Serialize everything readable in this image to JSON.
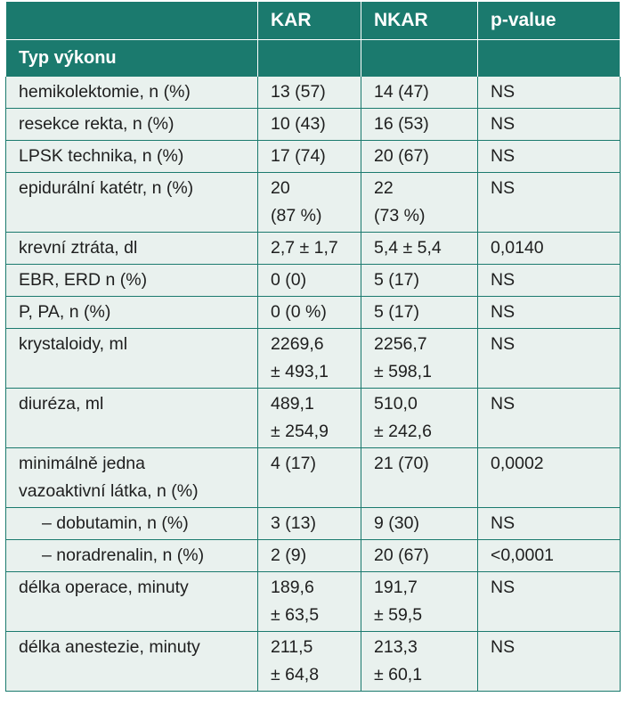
{
  "headers": [
    "",
    "KAR",
    "NKAR",
    "p-value"
  ],
  "section": "Typ výkonu",
  "rows": [
    {
      "label": [
        "hemikolektomie, n (%)"
      ],
      "kar": [
        "13 (57)"
      ],
      "nkar": [
        "14 (47)"
      ],
      "p": "NS",
      "sub": false
    },
    {
      "label": [
        "resekce rekta, n (%)"
      ],
      "kar": [
        "10 (43)"
      ],
      "nkar": [
        "16 (53)"
      ],
      "p": "NS",
      "sub": false
    },
    {
      "label": [
        "LPSK technika, n (%)"
      ],
      "kar": [
        "17 (74)"
      ],
      "nkar": [
        "20 (67)"
      ],
      "p": "NS",
      "sub": false
    },
    {
      "label": [
        "epidurální katétr, n (%)"
      ],
      "kar": [
        "20",
        "(87 %)"
      ],
      "nkar": [
        "22",
        "(73 %)"
      ],
      "p": "NS",
      "sub": false
    },
    {
      "label": [
        "krevní ztráta, dl"
      ],
      "kar": [
        "2,7 ± 1,7"
      ],
      "nkar": [
        "5,4 ± 5,4"
      ],
      "p": "0,0140",
      "sub": false
    },
    {
      "label": [
        "EBR, ERD n (%)"
      ],
      "kar": [
        "0 (0)"
      ],
      "nkar": [
        "5 (17)"
      ],
      "p": "NS",
      "sub": false
    },
    {
      "label": [
        "P, PA, n (%)"
      ],
      "kar": [
        "0 (0 %)"
      ],
      "nkar": [
        "5 (17)"
      ],
      "p": "NS",
      "sub": false
    },
    {
      "label": [
        "krystaloidy, ml"
      ],
      "kar": [
        "2269,6",
        "± 493,1"
      ],
      "nkar": [
        "2256,7",
        "± 598,1"
      ],
      "p": "NS",
      "sub": false
    },
    {
      "label": [
        "diuréza, ml"
      ],
      "kar": [
        "489,1",
        "± 254,9"
      ],
      "nkar": [
        "510,0",
        "± 242,6"
      ],
      "p": "NS",
      "sub": false
    },
    {
      "label": [
        "minimálně jedna",
        "vazoaktivní látka, n (%)"
      ],
      "kar": [
        "4 (17)"
      ],
      "nkar": [
        "21 (70)"
      ],
      "p": "0,0002",
      "sub": false
    },
    {
      "label": [
        "– dobutamin, n (%)"
      ],
      "kar": [
        "3 (13)"
      ],
      "nkar": [
        "9 (30)"
      ],
      "p": "NS",
      "sub": true
    },
    {
      "label": [
        "– noradrenalin, n (%)"
      ],
      "kar": [
        "2 (9)"
      ],
      "nkar": [
        "20 (67)"
      ],
      "p": "<0,0001",
      "sub": true
    },
    {
      "label": [
        "délka operace, minuty"
      ],
      "kar": [
        "189,6",
        "± 63,5"
      ],
      "nkar": [
        "191,7",
        "± 59,5"
      ],
      "p": "NS",
      "sub": false
    },
    {
      "label": [
        "délka anestezie, minuty"
      ],
      "kar": [
        "211,5",
        "± 64,8"
      ],
      "nkar": [
        "213,3",
        "± 60,1"
      ],
      "p": "NS",
      "sub": false
    }
  ],
  "colors": {
    "header_bg": "#1b7a6e",
    "body_bg": "#e9f1ee",
    "border": "#1b7a6e"
  }
}
